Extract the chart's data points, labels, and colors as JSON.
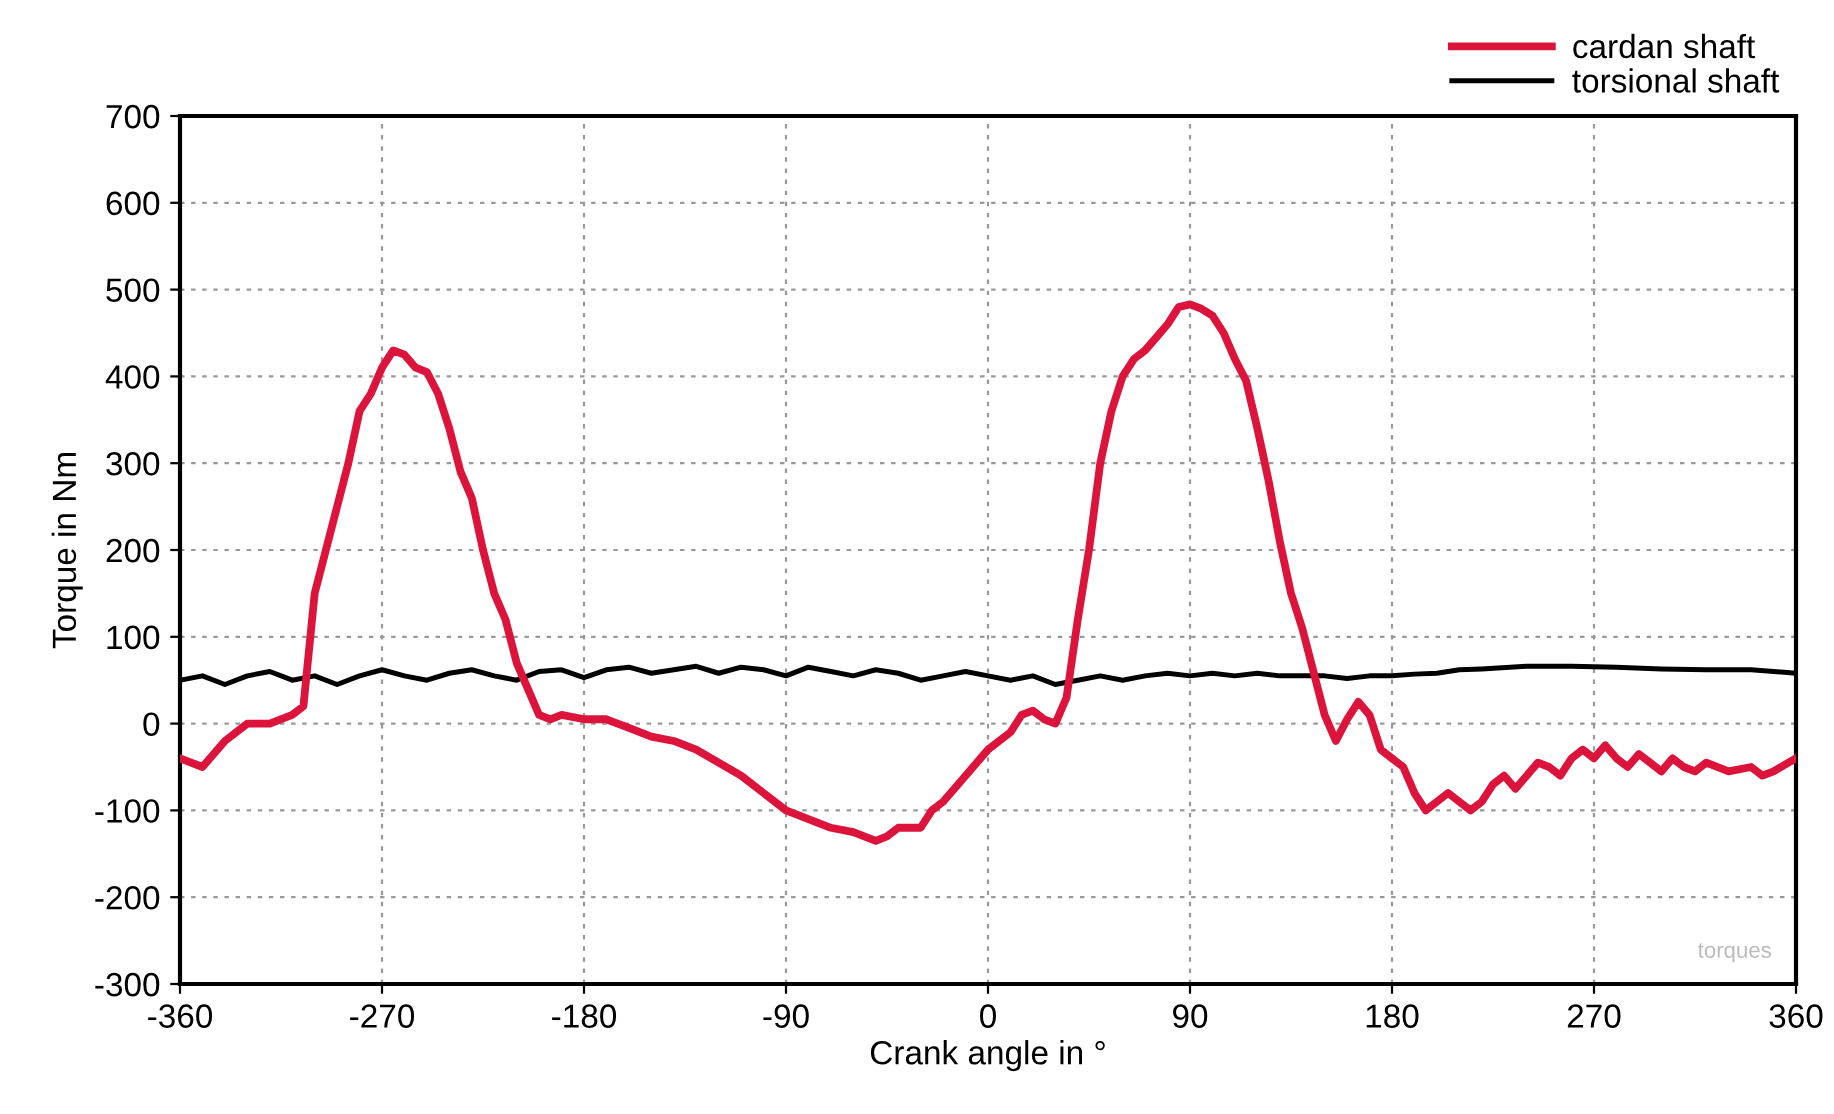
{
  "chart_data": {
    "type": "line",
    "xlabel": "Crank angle in °",
    "ylabel": "Torque in Nm",
    "xlim": [
      -360,
      360
    ],
    "xticks": [
      -360,
      -270,
      -180,
      -90,
      0,
      90,
      180,
      270,
      360
    ],
    "ylim": [
      -300,
      700
    ],
    "yticks": [
      -300,
      -200,
      -100,
      0,
      100,
      200,
      300,
      400,
      500,
      600,
      700
    ],
    "grid": true,
    "legend": "top right",
    "line_style": "solid",
    "marker": "none",
    "annotations": [
      "torques"
    ],
    "series": [
      {
        "name": "cardan shaft",
        "color": "#dc143c",
        "x": [
          -360,
          -350,
          -340,
          -330,
          -320,
          -310,
          -305,
          -300,
          -290,
          -285,
          -280,
          -275,
          -270,
          -265,
          -260,
          -255,
          -250,
          -245,
          -240,
          -235,
          -230,
          -225,
          -220,
          -215,
          -210,
          -205,
          -200,
          -195,
          -190,
          -180,
          -170,
          -160,
          -150,
          -140,
          -130,
          -120,
          -110,
          -100,
          -90,
          -80,
          -70,
          -60,
          -50,
          -45,
          -40,
          -30,
          -25,
          -20,
          -10,
          0,
          10,
          15,
          20,
          25,
          30,
          35,
          40,
          45,
          50,
          55,
          60,
          65,
          70,
          75,
          80,
          85,
          90,
          95,
          100,
          105,
          110,
          115,
          120,
          125,
          130,
          135,
          140,
          145,
          150,
          155,
          160,
          165,
          170,
          175,
          180,
          185,
          190,
          195,
          200,
          205,
          210,
          215,
          220,
          225,
          230,
          235,
          240,
          245,
          250,
          255,
          260,
          265,
          270,
          275,
          280,
          285,
          290,
          295,
          300,
          305,
          310,
          315,
          320,
          330,
          340,
          345,
          350,
          360
        ],
        "values": [
          -40,
          -50,
          -20,
          0,
          0,
          10,
          20,
          150,
          250,
          300,
          360,
          380,
          410,
          430,
          425,
          410,
          405,
          380,
          340,
          290,
          260,
          200,
          150,
          120,
          70,
          40,
          10,
          5,
          10,
          5,
          5,
          -5,
          -15,
          -20,
          -30,
          -45,
          -60,
          -80,
          -100,
          -110,
          -120,
          -125,
          -135,
          -130,
          -120,
          -120,
          -100,
          -90,
          -60,
          -30,
          -10,
          10,
          15,
          5,
          0,
          30,
          120,
          200,
          300,
          360,
          400,
          420,
          430,
          445,
          460,
          480,
          483,
          478,
          470,
          450,
          420,
          395,
          340,
          280,
          210,
          150,
          110,
          60,
          10,
          -20,
          5,
          25,
          10,
          -30,
          -40,
          -50,
          -80,
          -100,
          -90,
          -80,
          -90,
          -100,
          -90,
          -70,
          -60,
          -75,
          -60,
          -45,
          -50,
          -60,
          -40,
          -30,
          -40,
          -25,
          -40,
          -50,
          -35,
          -45,
          -55,
          -40,
          -50,
          -55,
          -45,
          -55,
          -50,
          -60,
          -55,
          -40
        ]
      },
      {
        "name": "torsional shaft",
        "color": "#000000",
        "x": [
          -360,
          -350,
          -340,
          -330,
          -320,
          -310,
          -300,
          -290,
          -280,
          -270,
          -260,
          -250,
          -240,
          -230,
          -220,
          -210,
          -200,
          -190,
          -180,
          -170,
          -160,
          -150,
          -140,
          -130,
          -120,
          -110,
          -100,
          -90,
          -80,
          -70,
          -60,
          -50,
          -40,
          -30,
          -20,
          -10,
          0,
          10,
          20,
          30,
          40,
          50,
          60,
          70,
          80,
          90,
          100,
          110,
          120,
          130,
          140,
          150,
          160,
          170,
          180,
          190,
          200,
          210,
          220,
          240,
          260,
          280,
          300,
          320,
          340,
          360
        ],
        "values": [
          50,
          55,
          45,
          55,
          60,
          50,
          55,
          45,
          55,
          62,
          55,
          50,
          58,
          62,
          55,
          50,
          60,
          62,
          53,
          62,
          65,
          58,
          62,
          66,
          58,
          65,
          62,
          55,
          65,
          60,
          55,
          62,
          58,
          50,
          55,
          60,
          55,
          50,
          55,
          45,
          50,
          55,
          50,
          55,
          58,
          55,
          58,
          55,
          58,
          55,
          55,
          55,
          52,
          55,
          55,
          57,
          58,
          62,
          63,
          66,
          66,
          65,
          63,
          62,
          62,
          58
        ]
      }
    ]
  }
}
